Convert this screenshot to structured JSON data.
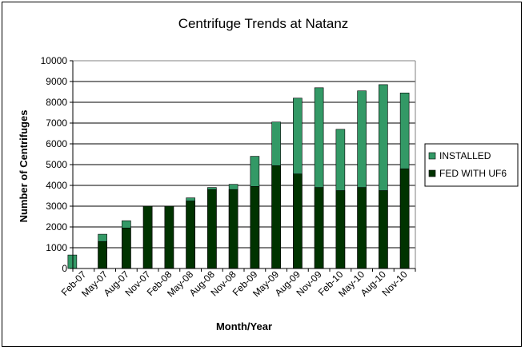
{
  "chart_data": {
    "type": "bar",
    "title": "Centrifuge Trends at Natanz",
    "xlabel": "Month/Year",
    "ylabel": "Number of Centrifuges",
    "ylim": [
      0,
      10000
    ],
    "yticks": [
      0,
      1000,
      2000,
      3000,
      4000,
      5000,
      6000,
      7000,
      8000,
      9000,
      10000
    ],
    "xtick_labels": [
      "Feb-07",
      "May-07",
      "Aug-07",
      "Nov-07",
      "Feb-08",
      "May-08",
      "Aug-08",
      "Nov-08",
      "Feb-09",
      "May-09",
      "Aug-09",
      "Nov-09",
      "Feb-10",
      "May-10",
      "Aug-10",
      "Nov-10"
    ],
    "grid": true,
    "legend_position": "right",
    "bar_overlap": true,
    "x": [
      "Feb-07",
      "May-07",
      "Aug-07",
      "Nov-07",
      "Feb-08",
      "May-08",
      "Aug-08",
      "Nov-08",
      "Feb-09",
      "May-09",
      "Aug-09",
      "Nov-09",
      "Feb-10",
      "May-10",
      "Aug-10",
      "Nov-10"
    ],
    "series": [
      {
        "name": "INSTALLED",
        "color": "#339966",
        "values": [
          650,
          1650,
          2300,
          3000,
          3000,
          3400,
          3900,
          4050,
          5400,
          7050,
          8200,
          8700,
          6700,
          8550,
          8850,
          8450
        ]
      },
      {
        "name": "FED WITH UF6",
        "color": "#003300",
        "values": [
          0,
          1300,
          1950,
          3000,
          3000,
          3250,
          3800,
          3800,
          3950,
          4950,
          4550,
          3900,
          3750,
          3900,
          3750,
          4800
        ]
      }
    ]
  },
  "colors": {
    "plot_background": "#ffffff",
    "gridline": "#000000",
    "border": "#808080"
  }
}
